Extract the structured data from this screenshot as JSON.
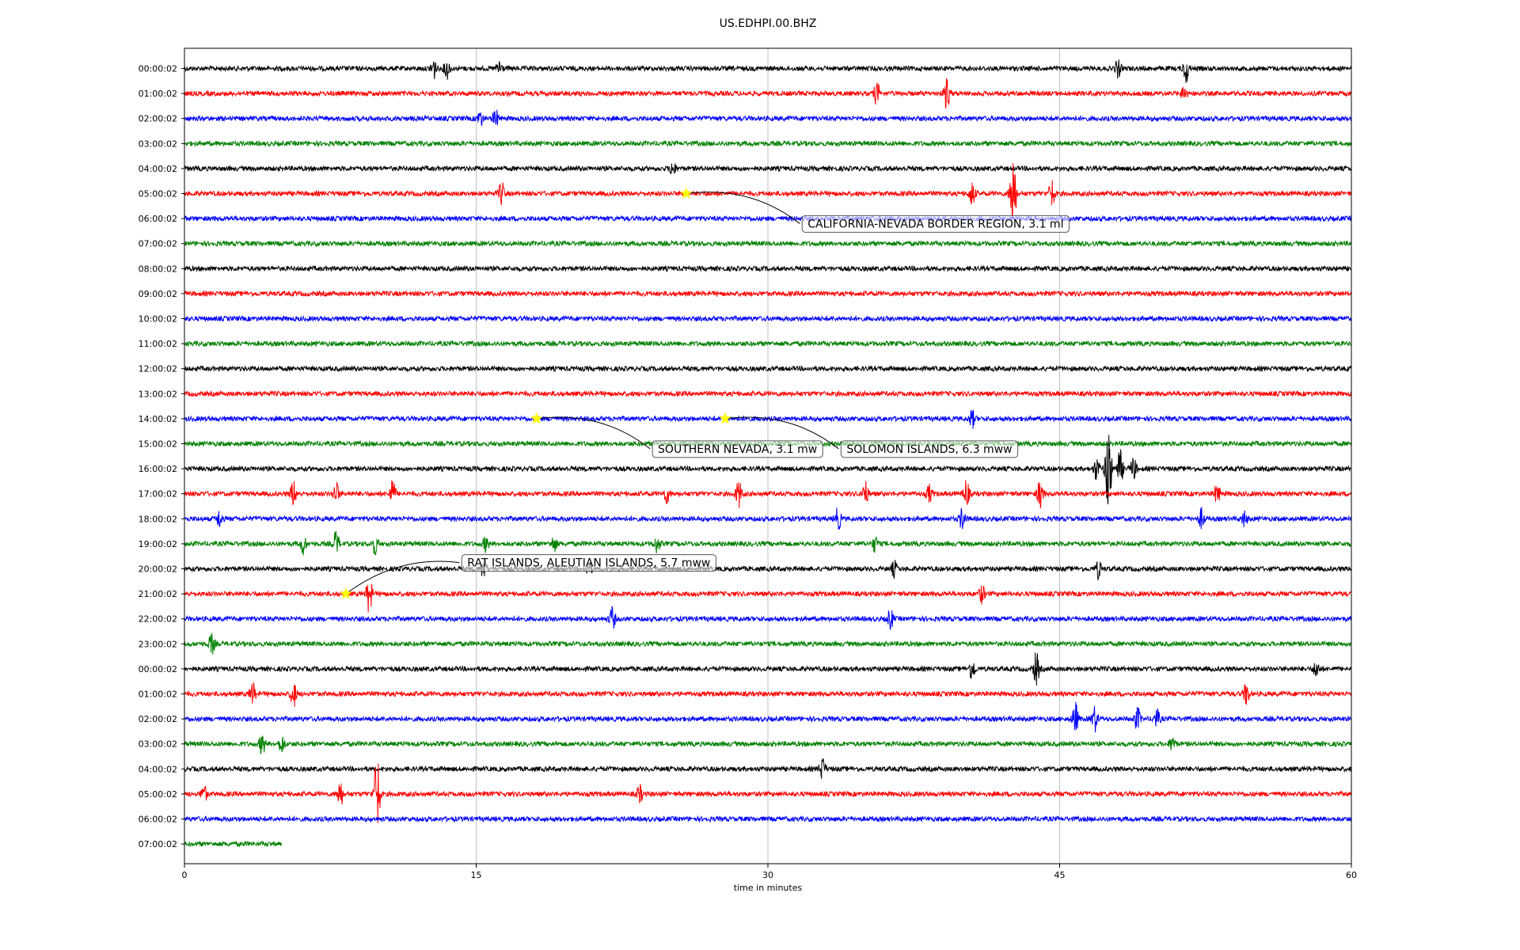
{
  "chart_data": {
    "type": "line",
    "title": "US.EDHPI.00.BHZ",
    "xlabel": "time in minutes",
    "ylabel": "",
    "xlim": [
      0,
      60
    ],
    "xticks": [
      0,
      15,
      30,
      45,
      60
    ],
    "xtick_labels": [
      "0",
      "15",
      "30",
      "45",
      "60"
    ],
    "grid": "vertical",
    "row_labels": [
      "00:00:02",
      "01:00:02",
      "02:00:02",
      "03:00:02",
      "04:00:02",
      "05:00:02",
      "06:00:02",
      "07:00:02",
      "08:00:02",
      "09:00:02",
      "10:00:02",
      "11:00:02",
      "12:00:02",
      "13:00:02",
      "14:00:02",
      "15:00:02",
      "16:00:02",
      "17:00:02",
      "18:00:02",
      "19:00:02",
      "20:00:02",
      "21:00:02",
      "22:00:02",
      "23:00:02",
      "00:00:02",
      "01:00:02",
      "02:00:02",
      "03:00:02",
      "04:00:02",
      "05:00:02",
      "06:00:02",
      "07:00:02"
    ],
    "trace_colors": [
      "#000000",
      "#ff0000",
      "#0000ff",
      "#008000"
    ],
    "last_row_end_minute": 5,
    "bursts": [
      {
        "row": 0,
        "minute": 12.8,
        "amp": 0.45
      },
      {
        "row": 0,
        "minute": 13.5,
        "amp": 0.4
      },
      {
        "row": 0,
        "minute": 16.2,
        "amp": 0.35
      },
      {
        "row": 0,
        "minute": 48.0,
        "amp": 0.35
      },
      {
        "row": 0,
        "minute": 51.5,
        "amp": 0.55
      },
      {
        "row": 1,
        "minute": 35.6,
        "amp": 0.45
      },
      {
        "row": 1,
        "minute": 39.2,
        "amp": 0.65
      },
      {
        "row": 1,
        "minute": 51.4,
        "amp": 0.3
      },
      {
        "row": 2,
        "minute": 15.2,
        "amp": 0.3
      },
      {
        "row": 2,
        "minute": 16.0,
        "amp": 0.35
      },
      {
        "row": 4,
        "minute": 25.1,
        "amp": 0.3
      },
      {
        "row": 5,
        "minute": 16.3,
        "amp": 0.45
      },
      {
        "row": 5,
        "minute": 40.5,
        "amp": 0.5
      },
      {
        "row": 5,
        "minute": 42.6,
        "amp": 1.8
      },
      {
        "row": 5,
        "minute": 44.6,
        "amp": 0.55
      },
      {
        "row": 14,
        "minute": 40.5,
        "amp": 0.35
      },
      {
        "row": 16,
        "minute": 46.9,
        "amp": 0.45
      },
      {
        "row": 16,
        "minute": 47.5,
        "amp": 2.0
      },
      {
        "row": 16,
        "minute": 48.1,
        "amp": 0.75
      },
      {
        "row": 16,
        "minute": 48.8,
        "amp": 0.45
      },
      {
        "row": 17,
        "minute": 5.6,
        "amp": 0.5
      },
      {
        "row": 17,
        "minute": 7.8,
        "amp": 0.45
      },
      {
        "row": 17,
        "minute": 10.7,
        "amp": 0.55
      },
      {
        "row": 17,
        "minute": 24.8,
        "amp": 0.35
      },
      {
        "row": 17,
        "minute": 28.5,
        "amp": 0.55
      },
      {
        "row": 17,
        "minute": 35.0,
        "amp": 0.5
      },
      {
        "row": 17,
        "minute": 38.3,
        "amp": 0.35
      },
      {
        "row": 17,
        "minute": 40.2,
        "amp": 0.55
      },
      {
        "row": 17,
        "minute": 44.0,
        "amp": 0.6
      },
      {
        "row": 17,
        "minute": 53.1,
        "amp": 0.4
      },
      {
        "row": 18,
        "minute": 1.8,
        "amp": 0.35
      },
      {
        "row": 18,
        "minute": 33.6,
        "amp": 0.45
      },
      {
        "row": 18,
        "minute": 40.0,
        "amp": 0.45
      },
      {
        "row": 18,
        "minute": 52.3,
        "amp": 0.4
      },
      {
        "row": 18,
        "minute": 54.5,
        "amp": 0.3
      },
      {
        "row": 19,
        "minute": 6.1,
        "amp": 0.4
      },
      {
        "row": 19,
        "minute": 7.8,
        "amp": 0.5
      },
      {
        "row": 19,
        "minute": 9.8,
        "amp": 0.4
      },
      {
        "row": 19,
        "minute": 15.5,
        "amp": 0.3
      },
      {
        "row": 19,
        "minute": 19.0,
        "amp": 0.3
      },
      {
        "row": 19,
        "minute": 24.3,
        "amp": 0.35
      },
      {
        "row": 19,
        "minute": 35.5,
        "amp": 0.3
      },
      {
        "row": 20,
        "minute": 15.4,
        "amp": 0.45
      },
      {
        "row": 20,
        "minute": 20.8,
        "amp": 0.3
      },
      {
        "row": 20,
        "minute": 36.5,
        "amp": 0.3
      },
      {
        "row": 20,
        "minute": 47.0,
        "amp": 0.35
      },
      {
        "row": 21,
        "minute": 9.5,
        "amp": 0.75
      },
      {
        "row": 21,
        "minute": 41.0,
        "amp": 0.35
      },
      {
        "row": 22,
        "minute": 22.0,
        "amp": 0.45
      },
      {
        "row": 22,
        "minute": 36.3,
        "amp": 0.4
      },
      {
        "row": 23,
        "minute": 1.4,
        "amp": 0.4
      },
      {
        "row": 24,
        "minute": 40.5,
        "amp": 0.45
      },
      {
        "row": 24,
        "minute": 43.8,
        "amp": 0.65
      },
      {
        "row": 24,
        "minute": 58.2,
        "amp": 0.35
      },
      {
        "row": 25,
        "minute": 3.5,
        "amp": 0.45
      },
      {
        "row": 25,
        "minute": 5.6,
        "amp": 0.55
      },
      {
        "row": 25,
        "minute": 54.6,
        "amp": 0.45
      },
      {
        "row": 26,
        "minute": 45.8,
        "amp": 0.65
      },
      {
        "row": 26,
        "minute": 46.8,
        "amp": 0.5
      },
      {
        "row": 26,
        "minute": 49.0,
        "amp": 0.45
      },
      {
        "row": 26,
        "minute": 50.0,
        "amp": 0.35
      },
      {
        "row": 27,
        "minute": 4.0,
        "amp": 0.45
      },
      {
        "row": 27,
        "minute": 5.0,
        "amp": 0.35
      },
      {
        "row": 27,
        "minute": 50.8,
        "amp": 0.3
      },
      {
        "row": 28,
        "minute": 32.8,
        "amp": 0.45
      },
      {
        "row": 29,
        "minute": 1.0,
        "amp": 0.35
      },
      {
        "row": 29,
        "minute": 8.0,
        "amp": 0.55
      },
      {
        "row": 29,
        "minute": 9.9,
        "amp": 1.7
      },
      {
        "row": 29,
        "minute": 23.4,
        "amp": 0.35
      }
    ],
    "events": [
      {
        "label": "CALIFORNIA-NEVADA BORDER REGION, 3.1 ml",
        "row": 5,
        "minute": 25.8,
        "label_row": 6.2,
        "label_minute": 31.8,
        "label_anchor": "left"
      },
      {
        "label": "SOUTHERN NEVADA, 3.1 mw",
        "row": 14,
        "minute": 18.1,
        "label_row": 15.2,
        "label_minute": 24.1,
        "label_anchor": "left"
      },
      {
        "label": "SOLOMON ISLANDS, 6.3 mww",
        "row": 14,
        "minute": 27.8,
        "label_row": 15.2,
        "label_minute": 33.8,
        "label_anchor": "left"
      },
      {
        "label": "RAT ISLANDS, ALEUTIAN ISLANDS, 5.7 mww",
        "row": 21,
        "minute": 8.3,
        "label_row": 19.75,
        "label_minute": 14.3,
        "label_anchor": "left"
      }
    ]
  }
}
